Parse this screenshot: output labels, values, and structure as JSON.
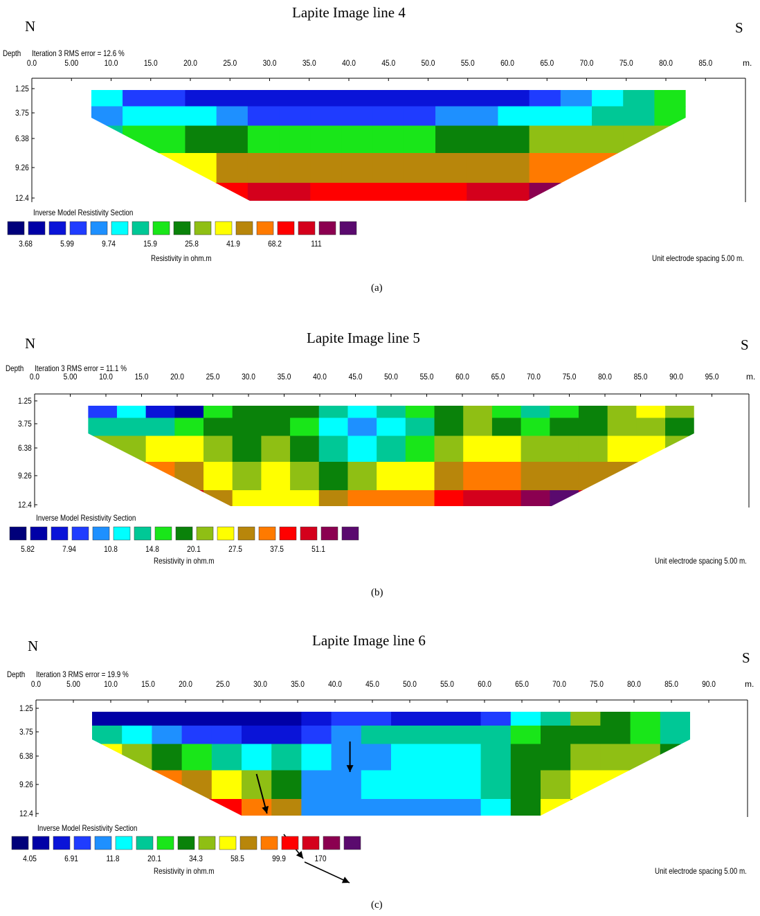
{
  "chart_data": [
    {
      "type": "heatmap",
      "title": "Lapite Image line 4",
      "left_direction": "N",
      "right_direction": "S",
      "depth_label": "Depth",
      "iteration_label": "Iteration 3 RMS error = 12.6 %",
      "x_ticks": [
        "0.0",
        "5.00",
        "10.0",
        "15.0",
        "20.0",
        "25.0",
        "30.0",
        "35.0",
        "40.0",
        "45.0",
        "50.0",
        "55.0",
        "60.0",
        "65.0",
        "70.0",
        "75.0",
        "80.0",
        "85.0"
      ],
      "x_unit": "m.",
      "depth_ticks": [
        "1.25",
        "3.75",
        "6.38",
        "9.26",
        "12.4"
      ],
      "xlim": [
        0,
        90
      ],
      "section_extent": {
        "top_start": 7.5,
        "top_end": 82.5,
        "bottom_start": 27.5,
        "bottom_end": 62.5
      },
      "legend_title": "Inverse Model Resistivity Section",
      "legend_colors": [
        "#00007a",
        "#0000a6",
        "#0a14d8",
        "#1f3cff",
        "#1e90ff",
        "#00ffff",
        "#00c896",
        "#19e619",
        "#0a820a",
        "#8fbf14",
        "#ffff00",
        "#b8860b",
        "#ff7a00",
        "#ff0000",
        "#d4001c",
        "#8b0050",
        "#5a0a6e"
      ],
      "legend_values": [
        "3.68",
        "5.99",
        "9.74",
        "15.9",
        "25.8",
        "41.9",
        "68.2",
        "111"
      ],
      "colorbar_label": "Resistivity in ohm.m",
      "spacing_label": "Unit electrode spacing 5.00 m.",
      "caption": "(a)",
      "layers": [
        {
          "depth": 1.25,
          "values": [
            5,
            3,
            3,
            2,
            2,
            2,
            2,
            2,
            2,
            2,
            2,
            2,
            2,
            2,
            3,
            4,
            5,
            6,
            7
          ]
        },
        {
          "depth": 3.75,
          "values": [
            4,
            5,
            5,
            5,
            4,
            3,
            3,
            3,
            3,
            3,
            3,
            4,
            4,
            5,
            5,
            5,
            6,
            6,
            7
          ]
        },
        {
          "depth": 6.38,
          "values": [
            6,
            7,
            7,
            8,
            8,
            7,
            7,
            7,
            7,
            7,
            7,
            8,
            8,
            8,
            9,
            9,
            9,
            9,
            9
          ]
        },
        {
          "depth": 9.26,
          "values": [
            9,
            10,
            10,
            10,
            11,
            11,
            11,
            11,
            11,
            11,
            11,
            11,
            11,
            11,
            12,
            12,
            12,
            12,
            12
          ]
        },
        {
          "depth": 12.4,
          "values": [
            12,
            12,
            13,
            13,
            13,
            14,
            14,
            13,
            13,
            13,
            13,
            13,
            14,
            14,
            15,
            15,
            14,
            13,
            13
          ]
        }
      ],
      "arrows": []
    },
    {
      "type": "heatmap",
      "title": "Lapite Image line 5",
      "left_direction": "N",
      "right_direction": "S",
      "depth_label": "Depth",
      "iteration_label": "Iteration 3 RMS error = 11.1 %",
      "x_ticks": [
        "0.0",
        "5.00",
        "10.0",
        "15.0",
        "20.0",
        "25.0",
        "30.0",
        "35.0",
        "40.0",
        "45.0",
        "50.0",
        "55.0",
        "60.0",
        "65.0",
        "70.0",
        "75.0",
        "80.0",
        "85.0",
        "90.0",
        "95.0"
      ],
      "x_unit": "m.",
      "depth_ticks": [
        "1.25",
        "3.75",
        "6.38",
        "9.26",
        "12.4"
      ],
      "xlim": [
        0,
        100
      ],
      "section_extent": {
        "top_start": 7.5,
        "top_end": 92.5,
        "bottom_start": 27.5,
        "bottom_end": 72.5
      },
      "legend_title": "Inverse Model Resistivity Section",
      "legend_colors": [
        "#00007a",
        "#0000a6",
        "#0a14d8",
        "#1f3cff",
        "#1e90ff",
        "#00ffff",
        "#00c896",
        "#19e619",
        "#0a820a",
        "#8fbf14",
        "#ffff00",
        "#b8860b",
        "#ff7a00",
        "#ff0000",
        "#d4001c",
        "#8b0050",
        "#5a0a6e"
      ],
      "legend_values": [
        "5.82",
        "7.94",
        "10.8",
        "14.8",
        "20.1",
        "27.5",
        "37.5",
        "51.1"
      ],
      "colorbar_label": "Resistivity in ohm.m",
      "spacing_label": "Unit electrode spacing 5.00 m.",
      "caption": "(b)",
      "layers": [
        {
          "depth": 1.25,
          "values": [
            3,
            5,
            2,
            1,
            7,
            8,
            8,
            8,
            6,
            5,
            6,
            7,
            8,
            9,
            7,
            6,
            7,
            8,
            9,
            10,
            9
          ]
        },
        {
          "depth": 3.75,
          "values": [
            6,
            6,
            6,
            7,
            8,
            8,
            8,
            7,
            5,
            4,
            5,
            6,
            8,
            9,
            8,
            7,
            8,
            8,
            9,
            9,
            8
          ]
        },
        {
          "depth": 6.38,
          "values": [
            9,
            9,
            10,
            10,
            9,
            8,
            9,
            8,
            6,
            5,
            6,
            7,
            9,
            10,
            10,
            9,
            9,
            9,
            10,
            10,
            9
          ]
        },
        {
          "depth": 9.26,
          "values": [
            11,
            12,
            12,
            11,
            10,
            9,
            10,
            9,
            8,
            9,
            10,
            10,
            11,
            12,
            12,
            11,
            11,
            11,
            11,
            11,
            11
          ]
        },
        {
          "depth": 12.4,
          "values": [
            13,
            14,
            15,
            14,
            11,
            10,
            10,
            10,
            11,
            12,
            12,
            12,
            13,
            14,
            14,
            15,
            16,
            14,
            13,
            13,
            13
          ]
        }
      ],
      "arrows": []
    },
    {
      "type": "heatmap",
      "title": "Lapite Image line 6",
      "left_direction": "N",
      "right_direction": "S",
      "depth_label": "Depth",
      "iteration_label": "Iteration 3 RMS error = 19.9 %",
      "x_ticks": [
        "0.0",
        "5.00",
        "10.0",
        "15.0",
        "20.0",
        "25.0",
        "30.0",
        "35.0",
        "40.0",
        "45.0",
        "50.0",
        "55.0",
        "60.0",
        "65.0",
        "70.0",
        "75.0",
        "80.0",
        "85.0",
        "90.0"
      ],
      "x_unit": "m.",
      "depth_ticks": [
        "1.25",
        "3.75",
        "6.38",
        "9.26",
        "12.4"
      ],
      "xlim": [
        0,
        95
      ],
      "section_extent": {
        "top_start": 7.5,
        "top_end": 87.5,
        "bottom_start": 27.5,
        "bottom_end": 67.5
      },
      "legend_title": "Inverse Model Resistivity Section",
      "legend_colors": [
        "#00007a",
        "#0000a6",
        "#0a14d8",
        "#1f3cff",
        "#1e90ff",
        "#00ffff",
        "#00c896",
        "#19e619",
        "#0a820a",
        "#8fbf14",
        "#ffff00",
        "#b8860b",
        "#ff7a00",
        "#ff0000",
        "#d4001c",
        "#8b0050",
        "#5a0a6e"
      ],
      "legend_values": [
        "4.05",
        "6.91",
        "11.8",
        "20.1",
        "34.3",
        "58.5",
        "99.9",
        "170"
      ],
      "colorbar_label": "Resistivity in ohm.m",
      "spacing_label": "Unit electrode spacing 5.00 m.",
      "caption": "(c)",
      "layers": [
        {
          "depth": 1.25,
          "values": [
            1,
            1,
            1,
            1,
            1,
            1,
            1,
            2,
            3,
            3,
            2,
            2,
            2,
            3,
            5,
            6,
            9,
            8,
            7,
            6
          ]
        },
        {
          "depth": 3.75,
          "values": [
            6,
            5,
            4,
            3,
            3,
            2,
            2,
            3,
            4,
            6,
            6,
            6,
            6,
            6,
            7,
            8,
            8,
            8,
            7,
            6
          ]
        },
        {
          "depth": 6.38,
          "values": [
            10,
            9,
            8,
            7,
            6,
            5,
            6,
            5,
            4,
            4,
            5,
            5,
            5,
            6,
            8,
            8,
            9,
            9,
            9,
            8
          ]
        },
        {
          "depth": 9.26,
          "values": [
            13,
            13,
            12,
            11,
            10,
            9,
            8,
            4,
            4,
            5,
            5,
            5,
            5,
            6,
            8,
            9,
            10,
            10,
            10,
            10
          ]
        },
        {
          "depth": 12.4,
          "values": [
            16,
            16,
            15,
            14,
            13,
            12,
            11,
            4,
            4,
            4,
            4,
            4,
            4,
            5,
            8,
            10,
            11,
            11,
            11,
            11
          ]
        }
      ],
      "arrows": [
        {
          "from": [
            29.5,
            8.2
          ],
          "to": [
            30.9,
            12.4
          ]
        },
        {
          "from": [
            42.0,
            4.8
          ],
          "to": [
            42.0,
            8.0
          ]
        }
      ]
    }
  ]
}
